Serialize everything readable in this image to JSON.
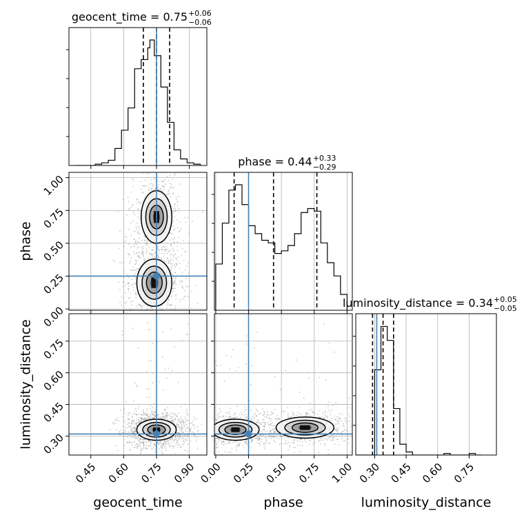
{
  "colors": {
    "truth": "#4682b4",
    "contour": "#000000",
    "grid": "#b0b0b0",
    "scatter": "#8a8a8a"
  },
  "chart_data": {
    "type": "corner",
    "parameters": [
      "geocent_time",
      "phase",
      "luminosity_distance"
    ],
    "truth": {
      "geocent_time": 0.75,
      "phase": 0.25,
      "luminosity_distance": 0.31
    },
    "titles": [
      {
        "param": "geocent_time",
        "text": "geocent_time = 0.75",
        "plus": "+0.06",
        "minus": "−0.06"
      },
      {
        "param": "phase",
        "text": "phase = 0.44",
        "plus": "+0.33",
        "minus": "−0.29"
      },
      {
        "param": "luminosity_distance",
        "text": "luminosity_distance = 0.34",
        "plus": "+0.05",
        "minus": "−0.05"
      }
    ],
    "axes": {
      "geocent_time": {
        "range": [
          0.35,
          0.98
        ],
        "ticks": [
          0.45,
          0.6,
          0.75,
          0.9
        ],
        "tick_labels": [
          "0.45",
          "0.60",
          "0.75",
          "0.90"
        ]
      },
      "phase": {
        "range": [
          -0.01,
          1.04
        ],
        "ticks": [
          0.0,
          0.25,
          0.5,
          0.75,
          1.0
        ],
        "tick_labels": [
          "0.00",
          "0.25",
          "0.50",
          "0.75",
          "1.00"
        ]
      },
      "luminosity_distance": {
        "range": [
          0.21,
          0.88
        ],
        "ticks": [
          0.3,
          0.45,
          0.6,
          0.75
        ],
        "tick_labels": [
          "0.30",
          "0.45",
          "0.60",
          "0.75"
        ]
      }
    },
    "histograms": {
      "geocent_time": {
        "edges": [
          0.38,
          0.41,
          0.44,
          0.47,
          0.5,
          0.53,
          0.56,
          0.59,
          0.62,
          0.65,
          0.68,
          0.71,
          0.72,
          0.74,
          0.77,
          0.8,
          0.83,
          0.86,
          0.89,
          0.92,
          0.95
        ],
        "counts": [
          0,
          0,
          0,
          1,
          2,
          4,
          13,
          27,
          44,
          74,
          81,
          90,
          96,
          84,
          60,
          33,
          12,
          5,
          2,
          1
        ],
        "quantiles": [
          0.69,
          0.75,
          0.81
        ]
      },
      "phase": {
        "edges": [
          0.0,
          0.05,
          0.1,
          0.15,
          0.2,
          0.25,
          0.3,
          0.35,
          0.4,
          0.45,
          0.5,
          0.55,
          0.6,
          0.65,
          0.7,
          0.75,
          0.8,
          0.85,
          0.9,
          0.95,
          1.0
        ],
        "counts": [
          35,
          66,
          91,
          95,
          80,
          64,
          58,
          53,
          51,
          43,
          45,
          49,
          58,
          74,
          77,
          75,
          51,
          36,
          26,
          12
        ],
        "quantiles": [
          0.14,
          0.44,
          0.77
        ]
      },
      "luminosity_distance": {
        "edges": [
          0.21,
          0.24,
          0.27,
          0.3,
          0.33,
          0.36,
          0.39,
          0.42,
          0.45,
          0.48,
          0.51,
          0.54,
          0.57,
          0.6,
          0.63,
          0.66,
          0.69,
          0.72,
          0.75,
          0.78,
          0.81
        ],
        "counts": [
          0,
          0,
          0,
          55,
          83,
          74,
          30,
          7,
          2,
          0,
          0,
          0,
          0,
          0,
          1,
          0,
          0,
          0,
          1,
          0
        ],
        "quantiles": [
          0.29,
          0.34,
          0.39
        ]
      }
    },
    "density_modes": [
      {
        "panel": "phase_vs_geocent_time",
        "peaks": [
          {
            "x": 0.75,
            "y": 0.7,
            "sx": 0.035,
            "sy": 0.1,
            "w": 1.0
          },
          {
            "x": 0.74,
            "y": 0.2,
            "sx": 0.04,
            "sy": 0.09,
            "w": 1.0
          }
        ]
      },
      {
        "panel": "luminosity_distance_vs_geocent_time",
        "peaks": [
          {
            "x": 0.75,
            "y": 0.33,
            "sx": 0.045,
            "sy": 0.025,
            "w": 1.0
          }
        ]
      },
      {
        "panel": "luminosity_distance_vs_phase",
        "peaks": [
          {
            "x": 0.15,
            "y": 0.33,
            "sx": 0.09,
            "sy": 0.025,
            "w": 1.0
          },
          {
            "x": 0.68,
            "y": 0.34,
            "sx": 0.11,
            "sy": 0.025,
            "w": 0.95
          }
        ]
      }
    ]
  }
}
